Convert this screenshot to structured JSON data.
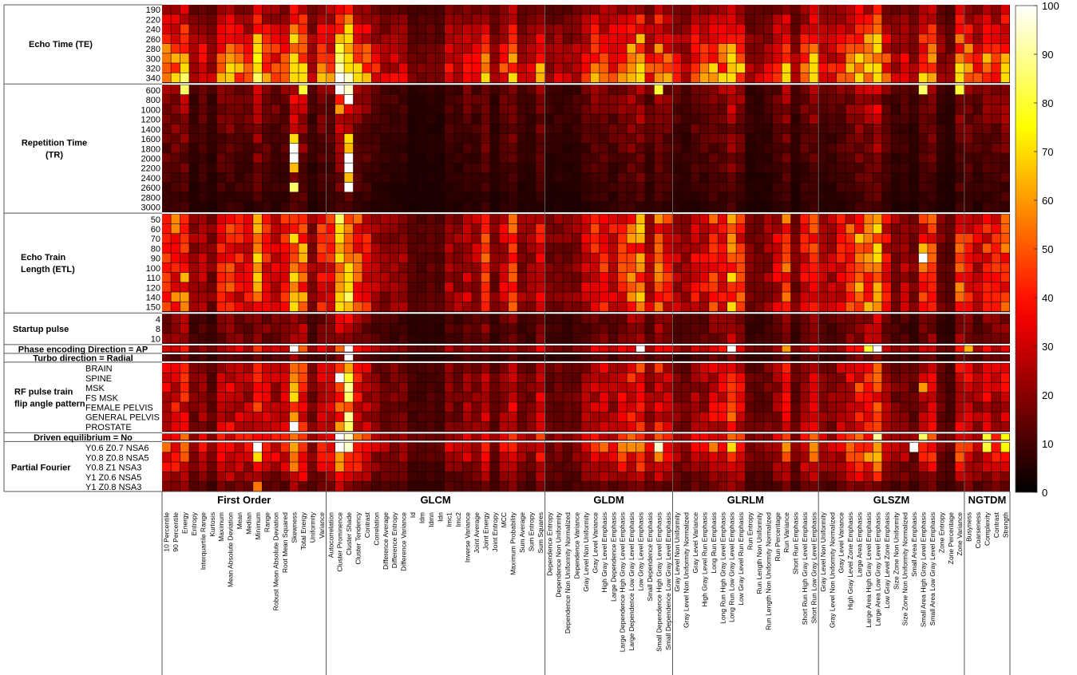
{
  "chart_data": {
    "type": "heatmap",
    "colormap": "hot",
    "color_range": [
      0,
      100
    ],
    "colorbar_ticks": [
      0,
      10,
      20,
      30,
      40,
      50,
      60,
      70,
      80,
      90,
      100
    ],
    "row_groups": [
      {
        "name": "Echo Time (TE)",
        "lines": [
          "Echo Time (TE)"
        ],
        "rows": [
          "190",
          "220",
          "240",
          "260",
          "280",
          "300",
          "320",
          "340"
        ]
      },
      {
        "name": "Repetition Time (TR)",
        "lines": [
          "Repetition Time",
          "(TR)"
        ],
        "rows": [
          "600",
          "800",
          "1000",
          "1200",
          "1400",
          "1600",
          "1800",
          "2000",
          "2200",
          "2400",
          "2600",
          "2800",
          "3000"
        ]
      },
      {
        "name": "Echo Train Length (ETL)",
        "lines": [
          "Echo Train",
          "Length (ETL)"
        ],
        "rows": [
          "50",
          "60",
          "70",
          "80",
          "90",
          "100",
          "110",
          "120",
          "140",
          "150"
        ]
      },
      {
        "name": "Startup pulse",
        "lines": [
          "Startup pulse"
        ],
        "rows": [
          "4",
          "8",
          "10"
        ]
      },
      {
        "name": "Phase encoding Direction = AP",
        "lines": [
          "Phase encoding Direction = AP"
        ],
        "rows": [
          ""
        ]
      },
      {
        "name": "Turbo direction = Radial",
        "lines": [
          "Turbo direction = Radial"
        ],
        "rows": [
          ""
        ]
      },
      {
        "name": "RF pulse train flip angle pattern",
        "lines": [
          "RF pulse train",
          "flip angle pattern"
        ],
        "rows": [
          "BRAIN",
          "SPINE",
          "MSK",
          "FS  MSK",
          "FEMALE  PELVIS",
          "GENERAL  PELVIS",
          "PROSTATE"
        ]
      },
      {
        "name": "Driven equilibrium = No",
        "lines": [
          "Driven equilibrium = No"
        ],
        "rows": [
          ""
        ]
      },
      {
        "name": "Partial Fourier",
        "lines": [
          "Partial Fourier"
        ],
        "rows": [
          "Y0.6 Z0.7 NSA6",
          "Y0.8 Z0.8 NSA5",
          "Y0.8 Z1    NSA3",
          "Y1    Z0.6  NSA5",
          "Y1    Z0.8  NSA3"
        ]
      }
    ],
    "feature_groups": [
      {
        "name": "First Order",
        "features": [
          "10 Percentile",
          "90 Percentile",
          "Energy",
          "Entropy",
          "Interquartile Range",
          "Kurtosis",
          "Maximum",
          "Mean Absolute Deviation",
          "Mean",
          "Median",
          "Minimum",
          "Range",
          "Robust Mean Absolute Deviation",
          "Root Mean Squared",
          "Skewness",
          "Total Energy",
          "Uniformity",
          "Variance"
        ]
      },
      {
        "name": "GLCM",
        "features": [
          "Autocorrelation",
          "Cluster Prominence",
          "Cluster Shade",
          "Cluster Tendency",
          "Contrast",
          "Correlation",
          "Difference Average",
          "Difference Entropy",
          "Difference Variance",
          "Id",
          "Idm",
          "Idmn",
          "Idn",
          "Imc1",
          "Imc2",
          "Inverse Variance",
          "Joint Average",
          "Joint Energy",
          "Joint Entropy",
          "MCC",
          "Maximum Probability",
          "Sum Average",
          "Sum Entropy",
          "Sum Squares"
        ]
      },
      {
        "name": "GLDM",
        "features": [
          "Dependence Entropy",
          "Dependence Non Uniformity",
          "Dependence Non Uniformity Normalized",
          "Dependence Variance",
          "Gray Level Non Uniformity",
          "Gray Level Variance",
          "High Gray Level Emphasis",
          "Large Dependence Emphasis",
          "Large Dependence High Gray Level Emphasis",
          "Large Dependence Low Gray Level Emphasis",
          "Low Gray Level Emphasis",
          "Small Dependence Emphasis",
          "Small Dependence High Gray Level Emphasis",
          "Small Dependence Low Gray Level Emphasis"
        ]
      },
      {
        "name": "GLRLM",
        "features": [
          "Gray Level Non Uniformity",
          "Gray Level Non Uniformity Normalized",
          "Gray Level Variance",
          "High Gray Level Run Emphasis",
          "Long Run Emphasis",
          "Long Run High Gray Level Emphasis",
          "Long Run Low Gray Level Emphasis",
          "Low Gray Level Run Emphasis",
          "Run Entropy",
          "Run Length Non Uniformity",
          "Run Length Non Uniformity Normalized",
          "Run Percentage",
          "Run Variance",
          "Short Run Emphasis",
          "Short Run High Gray Level Emphasis",
          "Short Run Low Gray Level Emphasis"
        ]
      },
      {
        "name": "GLSZM",
        "features": [
          "Gray Level Non Uniformity",
          "Gray Level Non Uniformity Normalized",
          "Gray Level Variance",
          "High Gray Level Zone Emphasis",
          "Large Area Emphasis",
          "Large Area High Gray Level Emphasis",
          "Large Area Low Gray Level Emphasis",
          "Low Gray Level Zone Emphasis",
          "Size Zone Non Uniformity",
          "Size Zone Non Uniformity Normalized",
          "Small Area Emphasis",
          "Small Area High Gray Level Emphasis",
          "Small Area Low Gray Level Emphasis",
          "Zone Entropy",
          "Zone Percentage",
          "Zone Variance"
        ]
      },
      {
        "name": "NGTDM",
        "features": [
          "Busyness",
          "Coarseness",
          "Complexity",
          "Contrast",
          "Strength"
        ]
      }
    ],
    "row_group_profiles": [
      {
        "group": "Echo Time (TE)",
        "base": 8,
        "gain": 1.0,
        "trend": "increasing"
      },
      {
        "group": "Repetition Time (TR)",
        "base": 3,
        "gain": 0.35,
        "trend": "decreasing"
      },
      {
        "group": "Echo Train Length (ETL)",
        "base": 6,
        "gain": 0.85,
        "trend": "flat"
      },
      {
        "group": "Startup pulse",
        "base": 4,
        "gain": 0.35,
        "trend": "flat"
      },
      {
        "group": "Phase encoding Direction = AP",
        "base": 10,
        "gain": 0.55,
        "trend": "flat"
      },
      {
        "group": "Turbo direction = Radial",
        "base": 3,
        "gain": 0.25,
        "trend": "flat"
      },
      {
        "group": "RF pulse train flip angle pattern",
        "base": 6,
        "gain": 0.6,
        "trend": "flat"
      },
      {
        "group": "Driven equilibrium = No",
        "base": 10,
        "gain": 0.75,
        "trend": "flat"
      },
      {
        "group": "Partial Fourier",
        "base": 6,
        "gain": 0.75,
        "trend": "decreasing"
      }
    ],
    "feature_sensitivity": {
      "First Order": [
        45,
        50,
        55,
        20,
        30,
        15,
        40,
        45,
        40,
        35,
        62,
        40,
        35,
        38,
        70,
        60,
        20,
        40
      ],
      "GLCM": [
        40,
        75,
        85,
        50,
        40,
        25,
        20,
        20,
        20,
        8,
        8,
        10,
        8,
        25,
        20,
        30,
        25,
        45,
        15,
        30,
        45,
        20,
        20,
        40
      ],
      "GLDM": [
        15,
        18,
        15,
        20,
        30,
        40,
        40,
        35,
        45,
        55,
        60,
        30,
        55,
        40
      ],
      "GLRLM": [
        25,
        20,
        35,
        35,
        45,
        45,
        65,
        45,
        15,
        15,
        20,
        30,
        50,
        15,
        35,
        50
      ],
      "GLSZM": [
        25,
        25,
        35,
        45,
        60,
        60,
        70,
        35,
        20,
        25,
        15,
        40,
        45,
        15,
        10,
        50
      ],
      "NGTDM": [
        45,
        30,
        45,
        40,
        50
      ]
    },
    "highlights": [
      {
        "row": "340",
        "feature": "Cluster Prominence",
        "value": 100
      },
      {
        "row": "340",
        "feature": "Cluster Shade",
        "value": 95
      },
      {
        "row": "320",
        "feature": "Cluster Prominence",
        "value": 92
      },
      {
        "row": "300",
        "feature": "Cluster Prominence",
        "value": 85
      },
      {
        "row": "280",
        "feature": "Cluster Prominence",
        "value": 80
      },
      {
        "row": "600",
        "feature": "Cluster Prominence",
        "value": 100
      },
      {
        "row": "600",
        "feature": "Cluster Shade",
        "value": 95
      },
      {
        "row": "800",
        "feature": "Cluster Shade",
        "value": 100
      },
      {
        "row": "1000",
        "feature": "Cluster Prominence",
        "value": 60
      },
      {
        "row": "340",
        "feature": "Energy",
        "value": 85
      },
      {
        "row": "600",
        "feature": "Energy",
        "value": 85
      },
      {
        "row": "340",
        "feature": "Minimum",
        "value": 85
      },
      {
        "row": "300",
        "feature": "Minimum",
        "value": 75
      },
      {
        "row": "600",
        "feature": "Total Energy",
        "value": 80
      },
      {
        "row": "600",
        "feature": "Small Dependence High Gray Level Emphasis",
        "value": 80
      },
      {
        "row": "600",
        "feature": "Small Area High Gray Level Emphasis",
        "value": 85
      },
      {
        "row": "340",
        "feature": "Small Area High Gray Level Emphasis",
        "value": 70
      },
      {
        "row": "600",
        "feature": "Zone Variance",
        "value": 80
      },
      {
        "row": "1600",
        "feature": "Skewness",
        "value": 70
      },
      {
        "row": "1800",
        "feature": "Skewness",
        "value": 100
      },
      {
        "row": "2000",
        "feature": "Skewness",
        "value": 100
      },
      {
        "row": "2200",
        "feature": "Skewness",
        "value": 65
      },
      {
        "row": "2600",
        "feature": "Skewness",
        "value": 85
      },
      {
        "row": "1600",
        "feature": "Cluster Shade",
        "value": 70
      },
      {
        "row": "1800",
        "feature": "Cluster Shade",
        "value": 65
      },
      {
        "row": "2000",
        "feature": "Cluster Shade",
        "value": 100
      },
      {
        "row": "2200",
        "feature": "Cluster Shade",
        "value": 100
      },
      {
        "row": "2400",
        "feature": "Cluster Shade",
        "value": 65
      },
      {
        "row": "2600",
        "feature": "Cluster Shade",
        "value": 100
      },
      {
        "row": "50",
        "feature": "Cluster Prominence",
        "value": 85
      },
      {
        "row": "140",
        "feature": "Cluster Shade",
        "value": 85
      },
      {
        "row": "150",
        "feature": "Cluster Shade",
        "value": 65
      },
      {
        "row": "90",
        "feature": "Small Area High Gray Level Emphasis",
        "value": 100
      },
      {
        "row": "80",
        "feature": "Small Area High Gray Level Emphasis",
        "value": 65
      },
      {
        "row": "100",
        "feature": "Small Area High Gray Level Emphasis",
        "value": 55
      },
      {
        "row": "",
        "feature": "Skewness",
        "value": 100,
        "group": "Phase encoding Direction = AP"
      },
      {
        "row": "",
        "feature": "Cluster Shade",
        "value": 100,
        "group": "Phase encoding Direction = AP"
      },
      {
        "row": "",
        "feature": "Low Gray Level Emphasis",
        "value": 100,
        "group": "Phase encoding Direction = AP"
      },
      {
        "row": "",
        "feature": "Long Run Low Gray Level Emphasis",
        "value": 100,
        "group": "Phase encoding Direction = AP"
      },
      {
        "row": "",
        "feature": "Large Area Low Gray Level Emphasis",
        "value": 100,
        "group": "Phase encoding Direction = AP"
      },
      {
        "row": "",
        "feature": "Large Area High Gray Level Emphasis",
        "value": 80,
        "group": "Phase encoding Direction = AP"
      },
      {
        "row": "",
        "feature": "Busyness",
        "value": 65,
        "group": "Phase encoding Direction = AP"
      },
      {
        "row": "",
        "feature": "Run Variance",
        "value": 60,
        "group": "Phase encoding Direction = AP"
      },
      {
        "row": "",
        "feature": "Cluster Shade",
        "value": 100,
        "group": "Turbo direction = Radial"
      },
      {
        "row": "SPINE",
        "feature": "Cluster Prominence",
        "value": 100
      },
      {
        "row": "SPINE",
        "feature": "Cluster Shade",
        "value": 80
      },
      {
        "row": "MSK",
        "feature": "Cluster Shade",
        "value": 90
      },
      {
        "row": "FS  MSK",
        "feature": "Cluster Shade",
        "value": 85
      },
      {
        "row": "MSK",
        "feature": "Skewness",
        "value": 65
      },
      {
        "row": "FS  MSK",
        "feature": "Skewness",
        "value": 70
      },
      {
        "row": "GENERAL  PELVIS",
        "feature": "Skewness",
        "value": 60
      },
      {
        "row": "PROSTATE",
        "feature": "Skewness",
        "value": 100
      },
      {
        "row": "GENERAL  PELVIS",
        "feature": "Cluster Shade",
        "value": 90
      },
      {
        "row": "PROSTATE",
        "feature": "Cluster Shade",
        "value": 85
      },
      {
        "row": "MSK",
        "feature": "Small Area High Gray Level Emphasis",
        "value": 60
      },
      {
        "row": "",
        "feature": "Cluster Prominence",
        "value": 100,
        "group": "Driven equilibrium = No"
      },
      {
        "row": "",
        "feature": "Cluster Shade",
        "value": 95,
        "group": "Driven equilibrium = No"
      },
      {
        "row": "",
        "feature": "Large Area Low Gray Level Emphasis",
        "value": 90,
        "group": "Driven equilibrium = No"
      },
      {
        "row": "",
        "feature": "Small Area High Gray Level Emphasis",
        "value": 85,
        "group": "Driven equilibrium = No"
      },
      {
        "row": "",
        "feature": "Complexity",
        "value": 80,
        "group": "Driven equilibrium = No"
      },
      {
        "row": "",
        "feature": "Strength",
        "value": 75,
        "group": "Driven equilibrium = No"
      },
      {
        "row": "Y0.6 Z0.7 NSA6",
        "feature": "Minimum",
        "value": 100
      },
      {
        "row": "Y0.6 Z0.7 NSA6",
        "feature": "Cluster Prominence",
        "value": 100
      },
      {
        "row": "Y0.6 Z0.7 NSA6",
        "feature": "Cluster Shade",
        "value": 95
      },
      {
        "row": "Y0.6 Z0.7 NSA6",
        "feature": "Small Dependence High Gray Level Emphasis",
        "value": 95
      },
      {
        "row": "Y0.6 Z0.7 NSA6",
        "feature": "Small Area Emphasis",
        "value": 100
      },
      {
        "row": "Y0.6 Z0.7 NSA6",
        "feature": "Complexity",
        "value": 80
      },
      {
        "row": "Y0.6 Z0.7 NSA6",
        "feature": "Strength",
        "value": 75
      },
      {
        "row": "Y0.8 Z0.8 NSA5",
        "feature": "Minimum",
        "value": 70
      },
      {
        "row": "Y1    Z0.8  NSA3",
        "feature": "Minimum",
        "value": 55
      }
    ]
  }
}
